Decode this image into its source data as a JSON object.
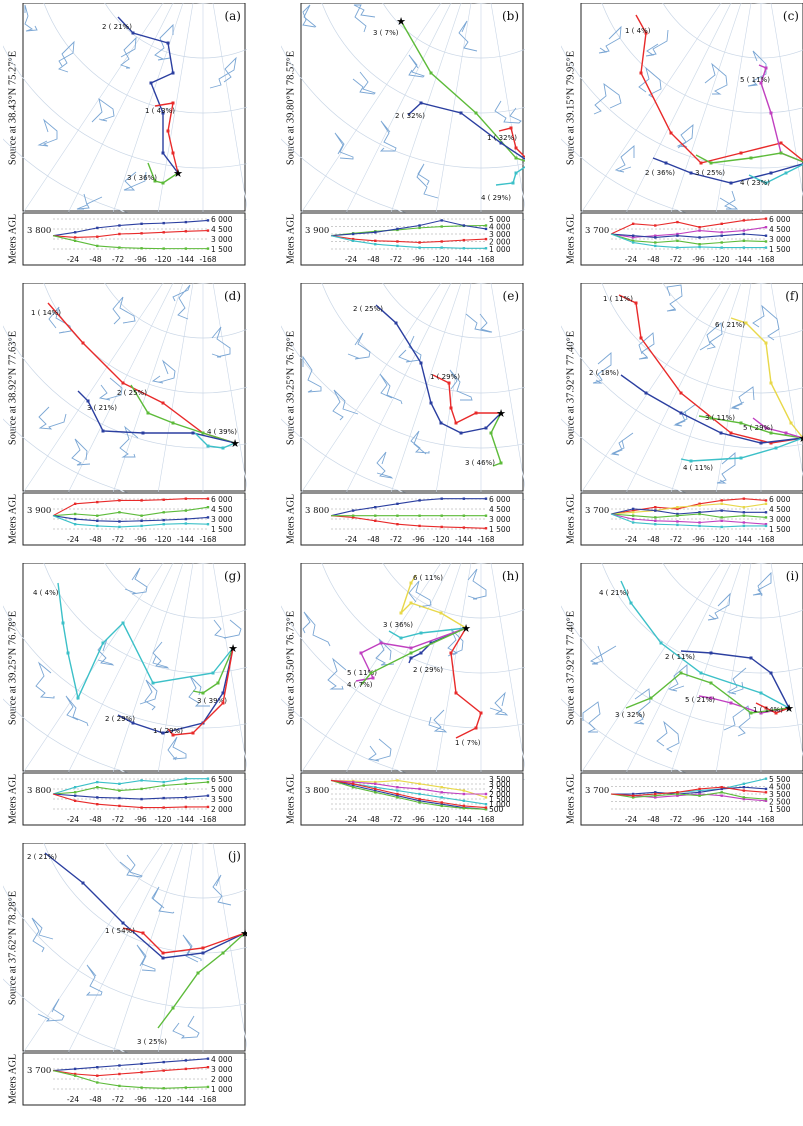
{
  "source_label": "Source",
  "agl_label": "Meters AGL",
  "x_ticks": [
    "-24",
    "-48",
    "-72",
    "-96",
    "-120",
    "-144",
    "-168"
  ],
  "colors": {
    "red": "#e82a2a",
    "blue": "#2b3fa0",
    "green": "#5dbb3a",
    "cyan": "#3cc0c8",
    "magenta": "#c040c0",
    "yellow": "#e8d84a",
    "map": "#7aa6d4",
    "grid": "#c9d6e6"
  },
  "panels": [
    {
      "id": "a",
      "letter": "(a)",
      "at": "at 38.43°N 75.27°E",
      "start_height": "3 800",
      "levels": [
        "6 000",
        "4 500",
        "3 000",
        "1 500"
      ],
      "clusters": [
        {
          "label": "2 ( 21%)",
          "color": "blue"
        },
        {
          "label": "1 ( 43%)",
          "color": "red"
        },
        {
          "label": "3 ( 36%)",
          "color": "green"
        }
      ]
    },
    {
      "id": "b",
      "letter": "(b)",
      "at": "at 39.80°N 78.57°E",
      "start_height": "3 900",
      "levels": [
        "5 000",
        "4 000",
        "3 000",
        "2 000",
        "1 000"
      ],
      "clusters": [
        {
          "label": "3 ( 7%)",
          "color": "green"
        },
        {
          "label": "2 ( 32%)",
          "color": "blue"
        },
        {
          "label": "1 ( 32%)",
          "color": "red"
        },
        {
          "label": "4 ( 29%)",
          "color": "cyan"
        }
      ]
    },
    {
      "id": "c",
      "letter": "(c)",
      "at": "at 39.15°N 79.95°E",
      "start_height": "3 700",
      "levels": [
        "6 000",
        "4 500",
        "3 000",
        "1 500"
      ],
      "clusters": [
        {
          "label": "1 ( 4%)",
          "color": "red"
        },
        {
          "label": "5 ( 11%)",
          "color": "magenta"
        },
        {
          "label": "2 ( 36%)",
          "color": "blue"
        },
        {
          "label": "3 ( 25%)",
          "color": "green"
        },
        {
          "label": "4 ( 23%)",
          "color": "cyan"
        }
      ]
    },
    {
      "id": "d",
      "letter": "(d)",
      "at": "at 38.92°N 77.63°E",
      "start_height": "3 900",
      "levels": [
        "6 000",
        "4 500",
        "3 000",
        "1 500"
      ],
      "clusters": [
        {
          "label": "1 ( 14%)",
          "color": "red"
        },
        {
          "label": "3 ( 21%)",
          "color": "green"
        },
        {
          "label": "2 ( 25%)",
          "color": "blue"
        },
        {
          "label": "4 ( 39%)",
          "color": "cyan"
        }
      ]
    },
    {
      "id": "e",
      "letter": "(e)",
      "at": "at 39.25°N 76.78°E",
      "start_height": "3 800",
      "levels": [
        "6 000",
        "4 500",
        "3 000",
        "1 500"
      ],
      "clusters": [
        {
          "label": "2 ( 25%)",
          "color": "blue"
        },
        {
          "label": "1 ( 29%)",
          "color": "red"
        },
        {
          "label": "3 ( 46%)",
          "color": "green"
        }
      ]
    },
    {
      "id": "f",
      "letter": "(f)",
      "at": "at 37.92°N 77.40°E",
      "start_height": "3 700",
      "levels": [
        "6 000",
        "4 500",
        "3 000",
        "1 500"
      ],
      "clusters": [
        {
          "label": "1 ( 11%)",
          "color": "red"
        },
        {
          "label": "6 ( 21%)",
          "color": "yellow"
        },
        {
          "label": "2 ( 18%)",
          "color": "blue"
        },
        {
          "label": "3 ( 11%)",
          "color": "green"
        },
        {
          "label": "5 ( 29%)",
          "color": "magenta"
        },
        {
          "label": "4 ( 11%)",
          "color": "cyan"
        }
      ]
    },
    {
      "id": "g",
      "letter": "(g)",
      "at": "at 39.25°N 76.78°E",
      "start_height": "3 800",
      "levels": [
        "6 500",
        "5 000",
        "3 500",
        "2 000"
      ],
      "clusters": [
        {
          "label": "4 ( 4%)",
          "color": "cyan"
        },
        {
          "label": "3 ( 39%)",
          "color": "green"
        },
        {
          "label": "2 ( 29%)",
          "color": "blue"
        },
        {
          "label": "1 ( 29%)",
          "color": "red"
        }
      ]
    },
    {
      "id": "h",
      "letter": "(h)",
      "at": "at 39.50°N 76.73°E",
      "start_height": "3 800",
      "levels": [
        "3 500",
        "3 000",
        "2 500",
        "2 000",
        "1 500",
        "1 000",
        "500"
      ],
      "clusters": [
        {
          "label": "6 ( 11%)",
          "color": "yellow"
        },
        {
          "label": "3 ( 36%)",
          "color": "cyan"
        },
        {
          "label": "2 ( 29%)",
          "color": "blue"
        },
        {
          "label": "5 ( 11%)",
          "color": "magenta"
        },
        {
          "label": "4 ( 7%)",
          "color": "green"
        },
        {
          "label": "1 ( 7%)",
          "color": "red"
        }
      ]
    },
    {
      "id": "i",
      "letter": "(i)",
      "at": "at 37.92°N 77.40°E",
      "start_height": "3 700",
      "levels": [
        "5 500",
        "4 500",
        "3 500",
        "2 500",
        "1 500"
      ],
      "clusters": [
        {
          "label": "4 ( 21%)",
          "color": "cyan"
        },
        {
          "label": "2 ( 11%)",
          "color": "blue"
        },
        {
          "label": "5 ( 21%)",
          "color": "magenta"
        },
        {
          "label": "3 ( 32%)",
          "color": "green"
        },
        {
          "label": "1 ( 14%)",
          "color": "red"
        }
      ]
    },
    {
      "id": "j",
      "letter": "(j)",
      "at": "at 37.62°N 78.28°E",
      "start_height": "3 700",
      "levels": [
        "4 000",
        "3 000",
        "2 000",
        "1 000"
      ],
      "clusters": [
        {
          "label": "2 ( 21%)",
          "color": "blue"
        },
        {
          "label": "1 ( 54%)",
          "color": "red"
        },
        {
          "label": "3 ( 25%)",
          "color": "green"
        }
      ]
    }
  ]
}
